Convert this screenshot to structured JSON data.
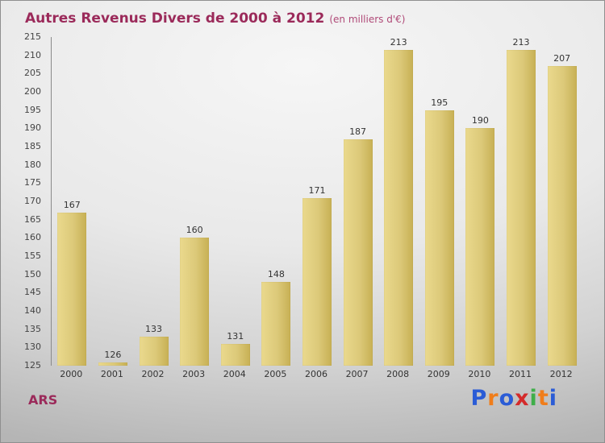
{
  "title": "Autres Revenus Divers de 2000 à 2012",
  "subtitle": "(en milliers d'€)",
  "footer": {
    "org_label": "ARS",
    "logo_text": "Proxiti",
    "logo_letters": [
      {
        "ch": "P",
        "color": "#2b5cd6"
      },
      {
        "ch": "r",
        "color": "#f07d1a"
      },
      {
        "ch": "o",
        "color": "#2b5cd6"
      },
      {
        "ch": "x",
        "color": "#d42a2a"
      },
      {
        "ch": "i",
        "color": "#3fae49"
      },
      {
        "ch": "t",
        "color": "#f07d1a"
      },
      {
        "ch": "i",
        "color": "#2b5cd6"
      }
    ]
  },
  "colors": {
    "title_accent": "#9b2a5a",
    "bar_gradient_start": "#ead98d",
    "bar_gradient_end": "#c7b054",
    "axis_line": "#8a8a8a",
    "label_text": "#333333"
  },
  "chart_data": {
    "type": "bar",
    "title": "Autres Revenus Divers de 2000 à 2012 (en milliers d'€)",
    "categories": [
      "2000",
      "2001",
      "2002",
      "2003",
      "2004",
      "2005",
      "2006",
      "2007",
      "2008",
      "2009",
      "2010",
      "2011",
      "2012"
    ],
    "values": [
      167,
      126,
      133,
      160,
      131,
      148,
      171,
      187,
      213,
      195,
      190,
      213,
      207
    ],
    "xlabel": "",
    "ylabel": "",
    "ylim": [
      125,
      215
    ],
    "ytick_step": 5,
    "grid": false,
    "legend": "none",
    "value_labels": true
  }
}
